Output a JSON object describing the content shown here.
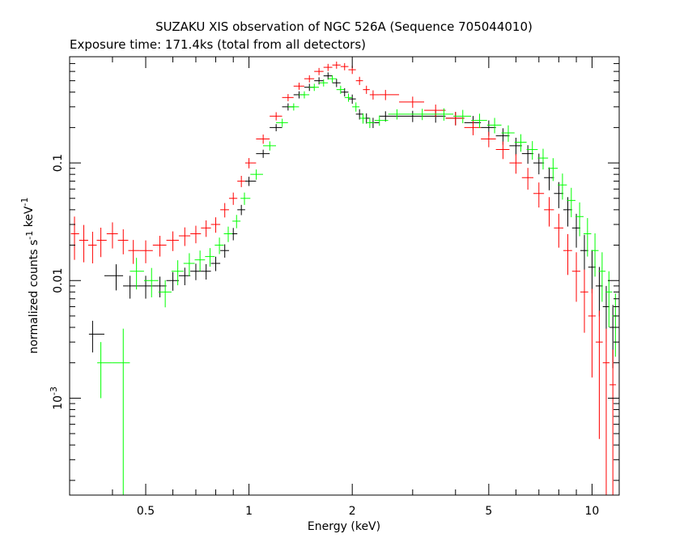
{
  "chart_data": {
    "type": "scatter",
    "title": "SUZAKU XIS observation of NGC 526A (Sequence 705044010)",
    "subtitle": "Exposure time: 171.4ks (total from all detectors)",
    "xlabel": "Energy (keV)",
    "ylabel": "normalized counts s^-1 keV^-1",
    "x_scale": "log",
    "y_scale": "log",
    "xlim": [
      0.3,
      12.0
    ],
    "ylim": [
      0.00015,
      0.8
    ],
    "x_ticks": [
      "0.5",
      "1",
      "2",
      "5",
      "10"
    ],
    "y_ticks": [
      "0.1",
      "0.01",
      "10^-3"
    ],
    "series_colors": [
      "#000000",
      "#ff0000",
      "#00ff00"
    ],
    "series": [
      {
        "color": "#000000",
        "x": [
          0.35,
          0.41,
          0.45,
          0.5,
          0.55,
          0.6,
          0.65,
          0.7,
          0.75,
          0.8,
          0.85,
          0.9,
          0.95,
          1.0,
          1.1,
          1.2,
          1.3,
          1.4,
          1.5,
          1.6,
          1.7,
          1.8,
          1.9,
          2.0,
          2.1,
          2.2,
          2.3,
          2.5,
          3.0,
          3.5,
          4.0,
          4.5,
          5.0,
          5.5,
          6.0,
          6.5,
          7.0,
          7.5,
          8.0,
          8.5,
          9.0,
          9.5,
          10.0,
          10.5,
          11.0,
          11.5
        ],
        "y": [
          0.0035,
          0.011,
          0.009,
          0.009,
          0.009,
          0.01,
          0.011,
          0.012,
          0.012,
          0.014,
          0.018,
          0.025,
          0.04,
          0.07,
          0.12,
          0.2,
          0.3,
          0.38,
          0.44,
          0.5,
          0.55,
          0.48,
          0.4,
          0.35,
          0.26,
          0.24,
          0.22,
          0.25,
          0.25,
          0.25,
          0.24,
          0.22,
          0.2,
          0.17,
          0.14,
          0.12,
          0.1,
          0.075,
          0.055,
          0.04,
          0.028,
          0.018,
          0.013,
          0.009,
          0.006,
          0.004
        ],
        "yerr_frac": [
          0.3,
          0.25,
          0.22,
          0.22,
          0.2,
          0.18,
          0.17,
          0.16,
          0.15,
          0.14,
          0.13,
          0.12,
          0.1,
          0.09,
          0.08,
          0.07,
          0.07,
          0.07,
          0.07,
          0.07,
          0.07,
          0.08,
          0.08,
          0.09,
          0.1,
          0.1,
          0.1,
          0.1,
          0.11,
          0.12,
          0.13,
          0.14,
          0.15,
          0.16,
          0.17,
          0.18,
          0.2,
          0.22,
          0.25,
          0.28,
          0.32,
          0.36,
          0.4,
          0.45,
          0.5,
          0.55
        ]
      },
      {
        "color": "#ff0000",
        "x": [
          0.31,
          0.33,
          0.35,
          0.37,
          0.4,
          0.43,
          0.46,
          0.5,
          0.55,
          0.6,
          0.65,
          0.7,
          0.75,
          0.8,
          0.85,
          0.9,
          0.95,
          1.0,
          1.1,
          1.2,
          1.3,
          1.4,
          1.5,
          1.6,
          1.7,
          1.8,
          1.9,
          2.0,
          2.1,
          2.2,
          2.3,
          2.5,
          3.0,
          3.5,
          4.0,
          4.5,
          5.0,
          5.5,
          6.0,
          6.5,
          7.0,
          7.5,
          8.0,
          8.5,
          9.0,
          9.5,
          10.0,
          10.5,
          11.0,
          11.5
        ],
        "y": [
          0.025,
          0.022,
          0.02,
          0.022,
          0.025,
          0.022,
          0.018,
          0.018,
          0.02,
          0.022,
          0.024,
          0.025,
          0.028,
          0.03,
          0.04,
          0.05,
          0.07,
          0.1,
          0.16,
          0.25,
          0.36,
          0.45,
          0.52,
          0.6,
          0.65,
          0.68,
          0.66,
          0.62,
          0.5,
          0.42,
          0.38,
          0.38,
          0.33,
          0.28,
          0.24,
          0.2,
          0.16,
          0.13,
          0.1,
          0.075,
          0.055,
          0.04,
          0.028,
          0.018,
          0.012,
          0.008,
          0.005,
          0.003,
          0.002,
          0.0013
        ],
        "yerr_frac": [
          0.4,
          0.35,
          0.3,
          0.28,
          0.25,
          0.24,
          0.23,
          0.22,
          0.2,
          0.19,
          0.18,
          0.17,
          0.16,
          0.15,
          0.14,
          0.12,
          0.11,
          0.1,
          0.09,
          0.08,
          0.07,
          0.07,
          0.07,
          0.07,
          0.07,
          0.07,
          0.07,
          0.08,
          0.08,
          0.08,
          0.09,
          0.1,
          0.11,
          0.12,
          0.13,
          0.14,
          0.15,
          0.17,
          0.19,
          0.21,
          0.24,
          0.28,
          0.32,
          0.38,
          0.45,
          0.55,
          0.7,
          0.85,
          0.95,
          0.99
        ]
      },
      {
        "color": "#00ff00",
        "x": [
          0.37,
          0.43,
          0.47,
          0.52,
          0.57,
          0.62,
          0.67,
          0.72,
          0.77,
          0.82,
          0.87,
          0.92,
          0.97,
          1.05,
          1.15,
          1.25,
          1.35,
          1.45,
          1.55,
          1.65,
          1.75,
          1.85,
          1.95,
          2.05,
          2.15,
          2.25,
          2.4,
          2.7,
          3.2,
          3.7,
          4.2,
          4.7,
          5.2,
          5.7,
          6.2,
          6.7,
          7.2,
          7.7,
          8.2,
          8.7,
          9.2,
          9.7,
          10.2,
          10.7,
          11.2,
          11.7
        ],
        "y": [
          0.002,
          0.002,
          0.012,
          0.01,
          0.008,
          0.012,
          0.014,
          0.015,
          0.016,
          0.02,
          0.025,
          0.032,
          0.05,
          0.08,
          0.14,
          0.22,
          0.3,
          0.38,
          0.44,
          0.48,
          0.52,
          0.42,
          0.36,
          0.3,
          0.24,
          0.22,
          0.23,
          0.26,
          0.26,
          0.26,
          0.25,
          0.23,
          0.21,
          0.18,
          0.15,
          0.13,
          0.11,
          0.09,
          0.065,
          0.048,
          0.035,
          0.025,
          0.018,
          0.012,
          0.008,
          0.005
        ],
        "yerr_frac": [
          0.5,
          0.95,
          0.3,
          0.28,
          0.26,
          0.24,
          0.22,
          0.2,
          0.18,
          0.16,
          0.15,
          0.13,
          0.12,
          0.1,
          0.09,
          0.08,
          0.07,
          0.07,
          0.07,
          0.07,
          0.07,
          0.08,
          0.08,
          0.09,
          0.1,
          0.1,
          0.1,
          0.1,
          0.11,
          0.12,
          0.13,
          0.14,
          0.15,
          0.16,
          0.17,
          0.18,
          0.2,
          0.22,
          0.25,
          0.28,
          0.32,
          0.36,
          0.4,
          0.45,
          0.5,
          0.55
        ]
      }
    ]
  }
}
